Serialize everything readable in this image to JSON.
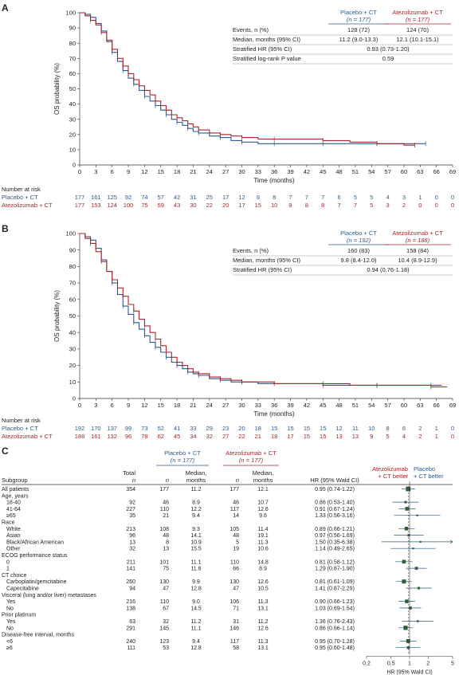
{
  "colors": {
    "placebo": "#2c5a8c",
    "atezo": "#a5262c",
    "axis": "#333333",
    "forest_box": "#2e5e3c",
    "text": "#222222"
  },
  "panel_a": {
    "letter": "A",
    "ylabel": "OS probability (%)",
    "xlabel": "Time (months)",
    "stats": {
      "col1": "Placebo + CT",
      "col1_n": "(n = 177)",
      "col2": "Atezolizumab + CT",
      "col2_n": "(n = 177)",
      "rows": [
        {
          "label": "Events, n (%)",
          "v1": "128 (72)",
          "v2": "124 (70)"
        },
        {
          "label": "Median, months (95% CI)",
          "v1": "11.2 (9.0-13.3)",
          "v2": "12.1 (10.1-15.1)"
        },
        {
          "label": "Stratified HR (95% CI)",
          "v": "0.93 (0.73-1.20)"
        },
        {
          "label": "Stratified log-rank P value",
          "v": "0.59"
        }
      ]
    },
    "risk": {
      "title": "Number at risk",
      "placebo_label": "Placebo + CT",
      "atezo_label": "Atezolizumab + CT",
      "placebo": [
        "177",
        "161",
        "125",
        "92",
        "74",
        "57",
        "42",
        "31",
        "25",
        "17",
        "12",
        "9",
        "8",
        "7",
        "7",
        "7",
        "6",
        "5",
        "5",
        "4",
        "3",
        "1",
        "0",
        "0"
      ],
      "atezo": [
        "177",
        "153",
        "124",
        "100",
        "75",
        "59",
        "43",
        "30",
        "22",
        "20",
        "17",
        "15",
        "10",
        "9",
        "8",
        "8",
        "7",
        "7",
        "5",
        "3",
        "2",
        "0",
        "0",
        "0"
      ]
    }
  },
  "panel_b": {
    "letter": "B",
    "ylabel": "OS probability (%)",
    "xlabel": "Time (months)",
    "stats": {
      "col1": "Placebo + CT",
      "col1_n": "(n = 192)",
      "col2": "Atezolizumab + CT",
      "col2_n": "(n = 188)",
      "rows": [
        {
          "label": "Events, n (%)",
          "v1": "160 (83)",
          "v2": "158 (84)"
        },
        {
          "label": "Median, months (95% CI)",
          "v1": "9.8 (8.4-12.0)",
          "v2": "10.4 (8.9-12.9)"
        },
        {
          "label": "Stratified HR (95% CI)",
          "v": "0.94 (0.76-1.18)"
        }
      ]
    },
    "risk": {
      "title": "Number at risk",
      "placebo_label": "Placebo + CT",
      "atezo_label": "Atezolizumab + CT",
      "placebo": [
        "192",
        "170",
        "137",
        "99",
        "73",
        "52",
        "41",
        "33",
        "29",
        "23",
        "20",
        "18",
        "15",
        "15",
        "15",
        "15",
        "12",
        "11",
        "10",
        "8",
        "6",
        "2",
        "1",
        "0"
      ],
      "atezo": [
        "188",
        "161",
        "132",
        "96",
        "78",
        "62",
        "45",
        "34",
        "32",
        "27",
        "22",
        "21",
        "18",
        "17",
        "15",
        "15",
        "13",
        "13",
        "9",
        "5",
        "4",
        "2",
        "1",
        "0"
      ]
    }
  },
  "panel_c": {
    "letter": "C",
    "headers": {
      "placebo": "Placebo + CT",
      "placebo_n": "(n = 177)",
      "atezo": "Atezolizumab + CT",
      "atezo_n": "(n = 177)",
      "subgroup": "Subgroup",
      "total": "Total",
      "n": "n",
      "median1": "Median,",
      "median2": "months",
      "hr": "HR (95% Wald CI)",
      "favor_atezo_1": "Atezolizumab",
      "favor_atezo_2": "+ CT better",
      "favor_placebo_1": "Placebo",
      "favor_placebo_2": "+ CT better"
    },
    "xlabel": "HR (95% Wald CI)",
    "xticks": [
      "0.2",
      "0.5",
      "1",
      "2",
      "5"
    ]
  },
  "chart_data": [
    {
      "type": "line",
      "title": "",
      "xlabel": "Time (months)",
      "ylabel": "OS probability (%)",
      "xlim": [
        0,
        69
      ],
      "ylim": [
        0,
        100
      ],
      "xticks": [
        0,
        3,
        6,
        9,
        12,
        15,
        18,
        21,
        24,
        27,
        30,
        33,
        36,
        39,
        42,
        45,
        48,
        51,
        54,
        57,
        60,
        63,
        66,
        69
      ],
      "yticks": [
        0,
        10,
        20,
        30,
        40,
        50,
        60,
        70,
        80,
        90,
        100
      ],
      "series": [
        {
          "name": "Placebo + CT",
          "x": [
            0,
            1,
            2,
            3,
            4,
            5,
            6,
            7,
            8,
            9,
            10,
            11,
            12,
            13,
            14,
            15,
            16,
            17,
            18,
            19,
            20,
            21,
            22,
            24,
            26,
            28,
            30,
            33,
            36,
            40,
            45,
            50,
            55,
            60,
            64
          ],
          "y": [
            100,
            99,
            97,
            93,
            88,
            81,
            74,
            68,
            62,
            57,
            53,
            49,
            45,
            42,
            39,
            36,
            33,
            30,
            28,
            26,
            24,
            22,
            21,
            19,
            18,
            16,
            15,
            14,
            14,
            14,
            14,
            14,
            14,
            14,
            14
          ]
        },
        {
          "name": "Atezolizumab + CT",
          "x": [
            0,
            1,
            2,
            3,
            4,
            5,
            6,
            7,
            8,
            9,
            10,
            11,
            12,
            13,
            14,
            15,
            16,
            17,
            18,
            19,
            20,
            21,
            22,
            24,
            26,
            28,
            30,
            33,
            36,
            40,
            45,
            50,
            55,
            60,
            62
          ],
          "y": [
            100,
            98,
            95,
            92,
            87,
            82,
            76,
            70,
            65,
            60,
            56,
            52,
            49,
            46,
            42,
            39,
            36,
            33,
            31,
            29,
            27,
            25,
            23,
            21,
            20,
            19,
            18,
            17,
            17,
            17,
            16,
            15,
            14,
            13,
            13
          ]
        }
      ]
    },
    {
      "type": "line",
      "title": "",
      "xlabel": "Time (months)",
      "ylabel": "OS probability (%)",
      "xlim": [
        0,
        69
      ],
      "ylim": [
        0,
        100
      ],
      "xticks": [
        0,
        3,
        6,
        9,
        12,
        15,
        18,
        21,
        24,
        27,
        30,
        33,
        36,
        39,
        42,
        45,
        48,
        51,
        54,
        57,
        60,
        63,
        66,
        69
      ],
      "yticks": [
        0,
        10,
        20,
        30,
        40,
        50,
        60,
        70,
        80,
        90,
        100
      ],
      "series": [
        {
          "name": "Placebo + CT",
          "x": [
            0,
            1,
            2,
            3,
            4,
            5,
            6,
            7,
            8,
            9,
            10,
            11,
            12,
            13,
            14,
            15,
            16,
            17,
            18,
            19,
            20,
            21,
            22,
            24,
            26,
            28,
            30,
            33,
            36,
            40,
            45,
            50,
            55,
            60,
            65,
            67
          ],
          "y": [
            100,
            98,
            96,
            91,
            84,
            77,
            70,
            63,
            56,
            51,
            46,
            42,
            38,
            34,
            31,
            28,
            25,
            22,
            20,
            18,
            16,
            15,
            14,
            12,
            11,
            10,
            10,
            9,
            9,
            9,
            8,
            8,
            8,
            8,
            8,
            8
          ]
        },
        {
          "name": "Atezolizumab + CT",
          "x": [
            0,
            1,
            2,
            3,
            4,
            5,
            6,
            7,
            8,
            9,
            10,
            11,
            12,
            13,
            14,
            15,
            16,
            17,
            18,
            19,
            20,
            21,
            22,
            24,
            26,
            28,
            30,
            33,
            36,
            40,
            45,
            50,
            55,
            60,
            65,
            68
          ],
          "y": [
            100,
            97,
            94,
            89,
            83,
            77,
            72,
            67,
            62,
            57,
            53,
            48,
            44,
            40,
            36,
            32,
            28,
            25,
            22,
            20,
            18,
            16,
            15,
            13,
            12,
            11,
            10,
            10,
            9,
            9,
            9,
            8,
            8,
            8,
            7,
            7
          ]
        }
      ]
    },
    {
      "type": "table",
      "title": "",
      "xlabel": "HR (95% Wald CI)",
      "xscale": "log",
      "xlim": [
        0.2,
        5
      ],
      "rows": [
        {
          "label": "All patients",
          "level": 0,
          "total": "354",
          "pn": "177",
          "pm": "11.2",
          "an": "177",
          "am": "12.1",
          "hr_text": "0.95 (0.74-1.22)",
          "hr": 0.95,
          "lo": 0.74,
          "hi": 1.22
        },
        {
          "label": "Age, years",
          "level": 0
        },
        {
          "label": "18-40",
          "level": 1,
          "total": "92",
          "pn": "46",
          "pm": "8.9",
          "an": "46",
          "am": "10.7",
          "hr_text": "0.86 (0.53-1.40)",
          "hr": 0.86,
          "lo": 0.53,
          "hi": 1.4
        },
        {
          "label": "41-64",
          "level": 1,
          "total": "227",
          "pn": "110",
          "pm": "12.2",
          "an": "117",
          "am": "12.6",
          "hr_text": "0.91 (0.67-1.24)",
          "hr": 0.91,
          "lo": 0.67,
          "hi": 1.24
        },
        {
          "label": "≥65",
          "level": 1,
          "total": "35",
          "pn": "21",
          "pm": "9.4",
          "an": "14",
          "am": "9.6",
          "hr_text": "1.33 (0.56-3.16)",
          "hr": 1.33,
          "lo": 0.56,
          "hi": 3.16
        },
        {
          "label": "Race",
          "level": 0
        },
        {
          "label": "White",
          "level": 1,
          "total": "213",
          "pn": "108",
          "pm": "9.3",
          "an": "105",
          "am": "11.4",
          "hr_text": "0.89 (0.66-1.21)",
          "hr": 0.89,
          "lo": 0.66,
          "hi": 1.21
        },
        {
          "label": "Asian",
          "level": 1,
          "total": "96",
          "pn": "48",
          "pm": "14.1",
          "an": "48",
          "am": "19.1",
          "hr_text": "0.97 (0.56-1.69)",
          "hr": 0.97,
          "lo": 0.56,
          "hi": 1.69
        },
        {
          "label": "Black/African American",
          "level": 1,
          "total": "13",
          "pn": "8",
          "pm": "10.9",
          "an": "5",
          "am": "11.3",
          "hr_text": "1.50 (0.35-6.38)",
          "hr": 1.5,
          "lo": 0.35,
          "hi": 6.38
        },
        {
          "label": "Other",
          "level": 1,
          "total": "32",
          "pn": "13",
          "pm": "15.5",
          "an": "19",
          "am": "10.6",
          "hr_text": "1.14 (0.49-2.65)",
          "hr": 1.14,
          "lo": 0.49,
          "hi": 2.65
        },
        {
          "label": "ECOG performance status",
          "level": 0
        },
        {
          "label": "0",
          "level": 1,
          "total": "211",
          "pn": "101",
          "pm": "11.1",
          "an": "110",
          "am": "14.8",
          "hr_text": "0.81 (0.58-1.12)",
          "hr": 0.81,
          "lo": 0.58,
          "hi": 1.12
        },
        {
          "label": "1",
          "level": 1,
          "total": "141",
          "pn": "75",
          "pm": "11.6",
          "an": "66",
          "am": "8.9",
          "hr_text": "1.29 (0.87-1.90)",
          "hr": 1.29,
          "lo": 0.87,
          "hi": 1.9
        },
        {
          "label": "CT choice",
          "level": 0
        },
        {
          "label": "Carboplatin/gemcitabine",
          "level": 1,
          "total": "260",
          "pn": "130",
          "pm": "9.9",
          "an": "130",
          "am": "12.6",
          "hr_text": "0.81 (0.61-1.09)",
          "hr": 0.81,
          "lo": 0.61,
          "hi": 1.09
        },
        {
          "label": "Capecitabine",
          "level": 1,
          "total": "94",
          "pn": "47",
          "pm": "12.8",
          "an": "47",
          "am": "10.5",
          "hr_text": "1.41 (0.87-2.29)",
          "hr": 1.41,
          "lo": 0.87,
          "hi": 2.29
        },
        {
          "label": "Visceral (lung and/or liver) metastases",
          "level": 0
        },
        {
          "label": "Yes",
          "level": 1,
          "total": "216",
          "pn": "110",
          "pm": "9.0",
          "an": "106",
          "am": "11.3",
          "hr_text": "0.90 (0.66-1.23)",
          "hr": 0.9,
          "lo": 0.66,
          "hi": 1.23
        },
        {
          "label": "No",
          "level": 1,
          "total": "138",
          "pn": "67",
          "pm": "14.5",
          "an": "71",
          "am": "13.1",
          "hr_text": "1.03 (0.69-1.54)",
          "hr": 1.03,
          "lo": 0.69,
          "hi": 1.54
        },
        {
          "label": "Prior platinum",
          "level": 0
        },
        {
          "label": "Yes",
          "level": 1,
          "total": "63",
          "pn": "32",
          "pm": "11.2",
          "an": "31",
          "am": "11.2",
          "hr_text": "1.36 (0.76-2.43)",
          "hr": 1.36,
          "lo": 0.76,
          "hi": 2.43
        },
        {
          "label": "No",
          "level": 1,
          "total": "291",
          "pn": "145",
          "pm": "11.1",
          "an": "146",
          "am": "12.6",
          "hr_text": "0.86 (0.66-1.14)",
          "hr": 0.86,
          "lo": 0.66,
          "hi": 1.14
        },
        {
          "label": "Disease-free interval, months",
          "level": 0
        },
        {
          "label": "<6",
          "level": 1,
          "total": "240",
          "pn": "123",
          "pm": "9.4",
          "an": "117",
          "am": "11.3",
          "hr_text": "0.95 (0.70-1.28)",
          "hr": 0.95,
          "lo": 0.7,
          "hi": 1.28
        },
        {
          "label": "≥6",
          "level": 1,
          "total": "111",
          "pn": "53",
          "pm": "12.8",
          "an": "58",
          "am": "13.1",
          "hr_text": "0.95 (0.60-1.48)",
          "hr": 0.95,
          "lo": 0.6,
          "hi": 1.48
        }
      ]
    }
  ]
}
